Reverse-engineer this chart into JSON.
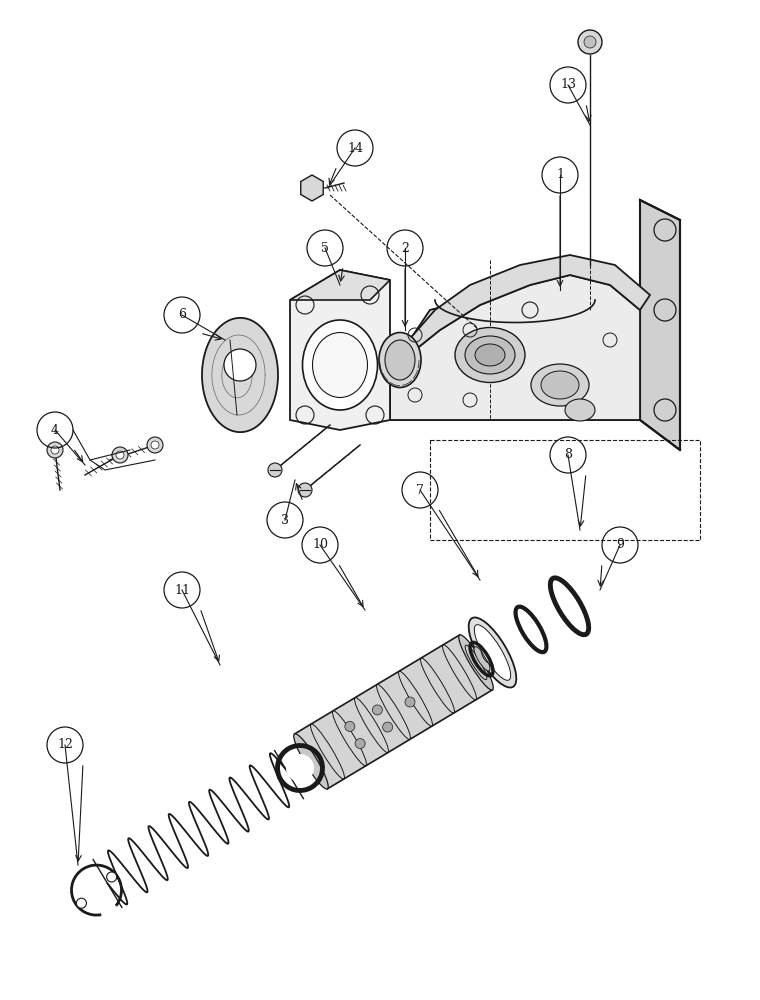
{
  "bg_color": "#ffffff",
  "line_color": "#1a1a1a",
  "figure_width": 7.6,
  "figure_height": 10.0,
  "dpi": 100
}
